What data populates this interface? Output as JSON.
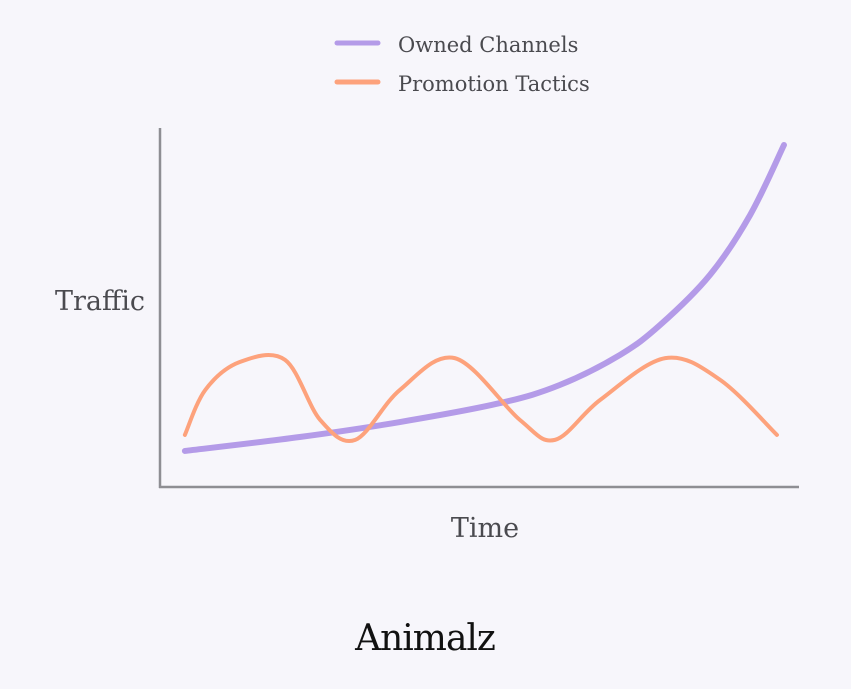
{
  "chart_data": {
    "type": "line",
    "title": "",
    "xlabel": "Time",
    "ylabel": "Traffic",
    "xlim": [
      0,
      100
    ],
    "ylim": [
      0,
      100
    ],
    "grid": false,
    "legend_position": "top-center",
    "series": [
      {
        "name": "Owned Channels",
        "color": "#b49be8",
        "x": [
          3.9,
          21.9,
          37.6,
          53.3,
          62.7,
          72.1,
          78.4,
          86.2,
          92.5,
          97.8
        ],
        "y": [
          10.1,
          14.0,
          18.2,
          23.5,
          28.6,
          37.0,
          45.4,
          59.4,
          76.2,
          95.8
        ]
      },
      {
        "name": "Promotion Tactics",
        "color": "#fda27c",
        "x": [
          3.9,
          7.1,
          12.5,
          19.6,
          25.1,
          30.6,
          37.6,
          46.2,
          56.4,
          61.9,
          69.0,
          79.2,
          87.8,
          96.7
        ],
        "y": [
          14.6,
          27.2,
          35.0,
          35.6,
          18.8,
          13.2,
          27.2,
          36.1,
          18.8,
          13.2,
          24.4,
          36.1,
          30.0,
          14.6
        ]
      }
    ]
  },
  "branding": {
    "logo": "Animalz"
  }
}
